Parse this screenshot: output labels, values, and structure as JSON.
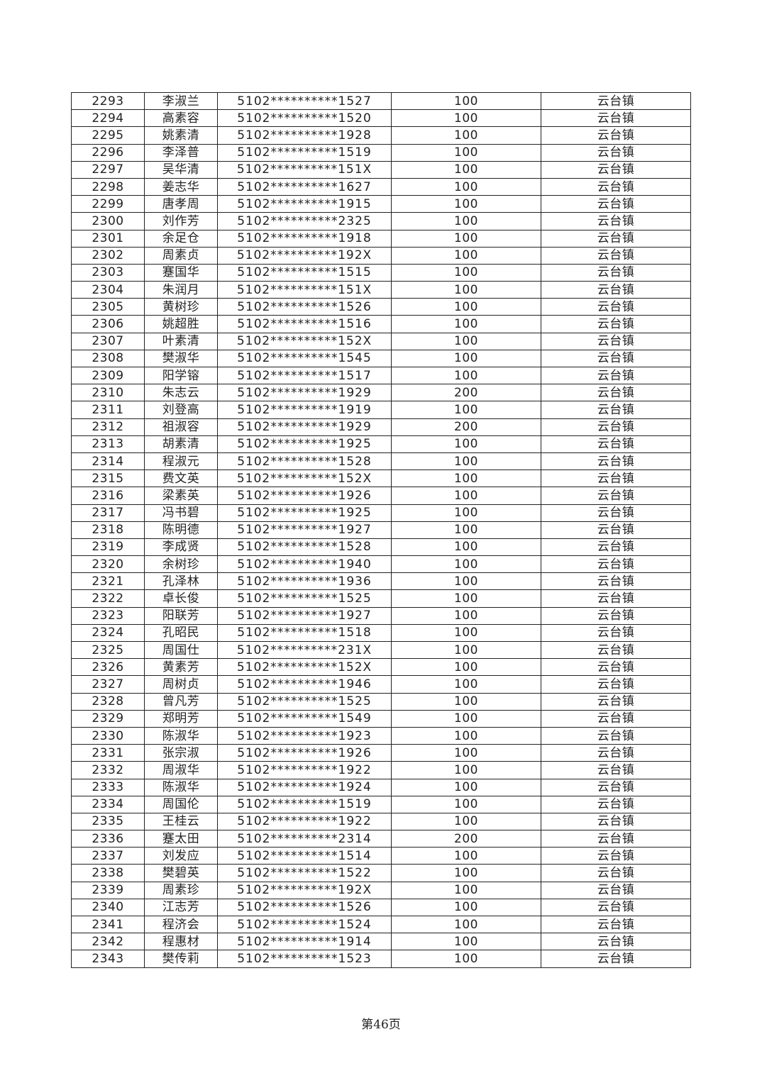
{
  "rows": [
    [
      "2293",
      "李淑兰",
      "5102**********1527",
      "100",
      "云台镇"
    ],
    [
      "2294",
      "高素容",
      "5102**********1520",
      "100",
      "云台镇"
    ],
    [
      "2295",
      "姚素清",
      "5102**********1928",
      "100",
      "云台镇"
    ],
    [
      "2296",
      "李泽普",
      "5102**********1519",
      "100",
      "云台镇"
    ],
    [
      "2297",
      "吴华清",
      "5102**********151X",
      "100",
      "云台镇"
    ],
    [
      "2298",
      "姜志华",
      "5102**********1627",
      "100",
      "云台镇"
    ],
    [
      "2299",
      "唐孝周",
      "5102**********1915",
      "100",
      "云台镇"
    ],
    [
      "2300",
      "刘作芳",
      "5102**********2325",
      "100",
      "云台镇"
    ],
    [
      "2301",
      "余足仓",
      "5102**********1918",
      "100",
      "云台镇"
    ],
    [
      "2302",
      "周素贞",
      "5102**********192X",
      "100",
      "云台镇"
    ],
    [
      "2303",
      "蹇国华",
      "5102**********1515",
      "100",
      "云台镇"
    ],
    [
      "2304",
      "朱润月",
      "5102**********151X",
      "100",
      "云台镇"
    ],
    [
      "2305",
      "黄树珍",
      "5102**********1526",
      "100",
      "云台镇"
    ],
    [
      "2306",
      "姚超胜",
      "5102**********1516",
      "100",
      "云台镇"
    ],
    [
      "2307",
      "叶素清",
      "5102**********152X",
      "100",
      "云台镇"
    ],
    [
      "2308",
      "樊淑华",
      "5102**********1545",
      "100",
      "云台镇"
    ],
    [
      "2309",
      "阳学镕",
      "5102**********1517",
      "100",
      "云台镇"
    ],
    [
      "2310",
      "朱志云",
      "5102**********1929",
      "200",
      "云台镇"
    ],
    [
      "2311",
      "刘登高",
      "5102**********1919",
      "100",
      "云台镇"
    ],
    [
      "2312",
      "祖淑容",
      "5102**********1929",
      "200",
      "云台镇"
    ],
    [
      "2313",
      "胡素清",
      "5102**********1925",
      "100",
      "云台镇"
    ],
    [
      "2314",
      "程淑元",
      "5102**********1528",
      "100",
      "云台镇"
    ],
    [
      "2315",
      "费文英",
      "5102**********152X",
      "100",
      "云台镇"
    ],
    [
      "2316",
      "梁素英",
      "5102**********1926",
      "100",
      "云台镇"
    ],
    [
      "2317",
      "冯书碧",
      "5102**********1925",
      "100",
      "云台镇"
    ],
    [
      "2318",
      "陈明德",
      "5102**********1927",
      "100",
      "云台镇"
    ],
    [
      "2319",
      "李成贤",
      "5102**********1528",
      "100",
      "云台镇"
    ],
    [
      "2320",
      "余树珍",
      "5102**********1940",
      "100",
      "云台镇"
    ],
    [
      "2321",
      "孔泽林",
      "5102**********1936",
      "100",
      "云台镇"
    ],
    [
      "2322",
      "卓长俊",
      "5102**********1525",
      "100",
      "云台镇"
    ],
    [
      "2323",
      "阳联芳",
      "5102**********1927",
      "100",
      "云台镇"
    ],
    [
      "2324",
      "孔昭民",
      "5102**********1518",
      "100",
      "云台镇"
    ],
    [
      "2325",
      "周国仕",
      "5102**********231X",
      "100",
      "云台镇"
    ],
    [
      "2326",
      "黄素芳",
      "5102**********152X",
      "100",
      "云台镇"
    ],
    [
      "2327",
      "周树贞",
      "5102**********1946",
      "100",
      "云台镇"
    ],
    [
      "2328",
      "曾凡芳",
      "5102**********1525",
      "100",
      "云台镇"
    ],
    [
      "2329",
      "郑明芳",
      "5102**********1549",
      "100",
      "云台镇"
    ],
    [
      "2330",
      "陈淑华",
      "5102**********1923",
      "100",
      "云台镇"
    ],
    [
      "2331",
      "张宗淑",
      "5102**********1926",
      "100",
      "云台镇"
    ],
    [
      "2332",
      "周淑华",
      "5102**********1922",
      "100",
      "云台镇"
    ],
    [
      "2333",
      "陈淑华",
      "5102**********1924",
      "100",
      "云台镇"
    ],
    [
      "2334",
      "周国伦",
      "5102**********1519",
      "100",
      "云台镇"
    ],
    [
      "2335",
      "王桂云",
      "5102**********1922",
      "100",
      "云台镇"
    ],
    [
      "2336",
      "蹇太田",
      "5102**********2314",
      "200",
      "云台镇"
    ],
    [
      "2337",
      "刘发应",
      "5102**********1514",
      "100",
      "云台镇"
    ],
    [
      "2338",
      "樊碧英",
      "5102**********1522",
      "100",
      "云台镇"
    ],
    [
      "2339",
      "周素珍",
      "5102**********192X",
      "100",
      "云台镇"
    ],
    [
      "2340",
      "江志芳",
      "5102**********1526",
      "100",
      "云台镇"
    ],
    [
      "2341",
      "程济会",
      "5102**********1524",
      "100",
      "云台镇"
    ],
    [
      "2342",
      "程惠材",
      "5102**********1914",
      "100",
      "云台镇"
    ],
    [
      "2343",
      "樊传莉",
      "5102**********1523",
      "100",
      "云台镇"
    ]
  ],
  "footer": "第46页"
}
